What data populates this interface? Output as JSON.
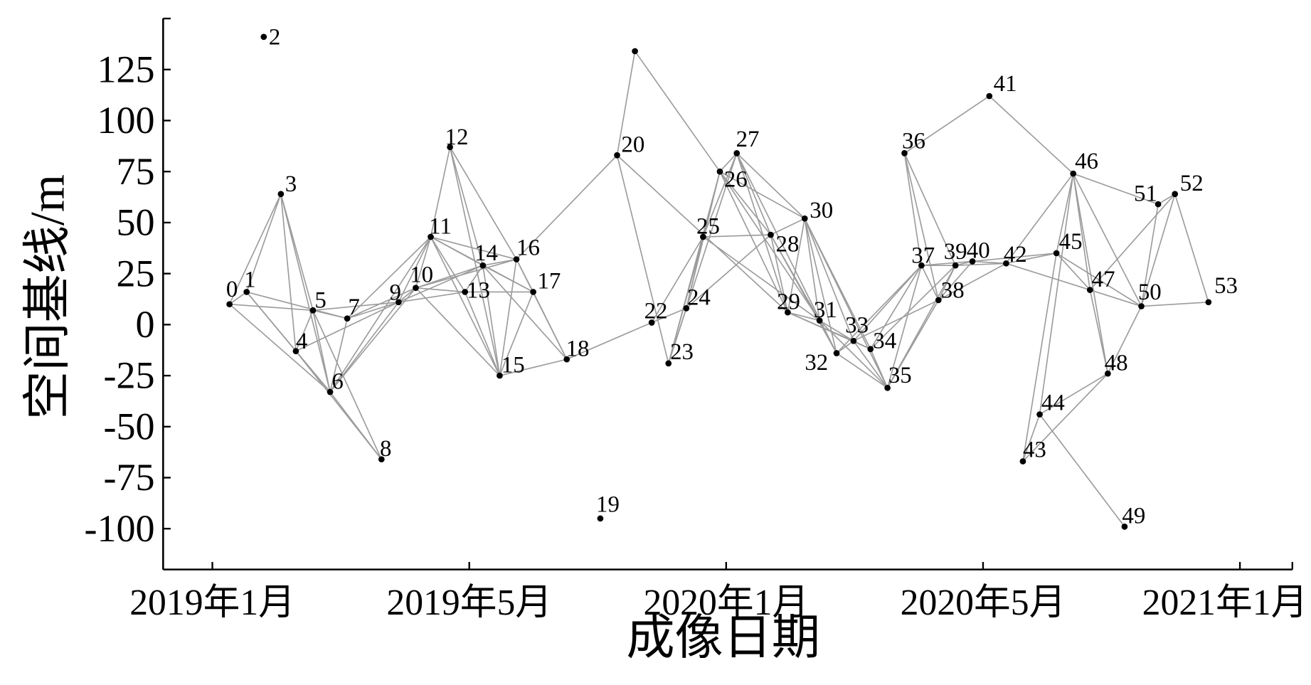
{
  "chart_data": {
    "type": "scatter",
    "xlabel": "成像日期",
    "ylabel": "空间基线/m",
    "xticks": [
      "2019年1月",
      "2019年5月",
      "2020年1月",
      "2020年5月",
      "2021年1月"
    ],
    "yticks": [
      125,
      100,
      75,
      50,
      25,
      0,
      -25,
      -50,
      -75,
      -100
    ],
    "xlim": [
      "2018-12-09",
      "2021-02-20"
    ],
    "ylim": [
      -120,
      150
    ],
    "grid": false,
    "colors": {
      "point": "#000000",
      "edge": "#9c9c9c",
      "axis": "#000000"
    },
    "points": [
      {
        "label": "0",
        "date": "2019-01-09",
        "baseline": 10
      },
      {
        "label": "1",
        "date": "2019-01-17",
        "baseline": 16
      },
      {
        "label": "2",
        "date": "2019-01-25",
        "baseline": 141
      },
      {
        "label": "3",
        "date": "2019-02-02",
        "baseline": 64
      },
      {
        "label": "4",
        "date": "2019-02-09",
        "baseline": -13
      },
      {
        "label": "5",
        "date": "2019-02-17",
        "baseline": 7
      },
      {
        "label": "6",
        "date": "2019-02-25",
        "baseline": -33
      },
      {
        "label": "7",
        "date": "2019-03-05",
        "baseline": 3
      },
      {
        "label": "8",
        "date": "2019-03-21",
        "baseline": -66
      },
      {
        "label": "9",
        "date": "2019-03-29",
        "baseline": 11
      },
      {
        "label": "10",
        "date": "2019-04-06",
        "baseline": 18
      },
      {
        "label": "11",
        "date": "2019-04-13",
        "baseline": 43
      },
      {
        "label": "12",
        "date": "2019-04-22",
        "baseline": 87
      },
      {
        "label": "13",
        "date": "2019-04-29",
        "baseline": 16
      },
      {
        "label": "14",
        "date": "2019-05-14",
        "baseline": 29
      },
      {
        "label": "15",
        "date": "2019-05-30",
        "baseline": -25
      },
      {
        "label": "16",
        "date": "2019-06-15",
        "baseline": 32
      },
      {
        "label": "17",
        "date": "2019-07-01",
        "baseline": 16
      },
      {
        "label": "18",
        "date": "2019-08-02",
        "baseline": -17
      },
      {
        "label": "19",
        "date": "2019-09-03",
        "baseline": -95
      },
      {
        "label": "20",
        "date": "2019-09-19",
        "baseline": 83
      },
      {
        "label": "",
        "date": "2019-10-06",
        "baseline": 134
      },
      {
        "label": "22",
        "date": "2019-10-22",
        "baseline": 1
      },
      {
        "label": "23",
        "date": "2019-11-07",
        "baseline": -19
      },
      {
        "label": "24",
        "date": "2019-11-24",
        "baseline": 8
      },
      {
        "label": "25",
        "date": "2019-12-10",
        "baseline": 43
      },
      {
        "label": "26",
        "date": "2019-12-26",
        "baseline": 75
      },
      {
        "label": "27",
        "date": "2020-01-06",
        "baseline": 84
      },
      {
        "label": "28",
        "date": "2020-01-22",
        "baseline": 44
      },
      {
        "label": "29",
        "date": "2020-01-30",
        "baseline": 6
      },
      {
        "label": "30",
        "date": "2020-02-07",
        "baseline": 52
      },
      {
        "label": "31",
        "date": "2020-02-14",
        "baseline": 2
      },
      {
        "label": "32",
        "date": "2020-02-22",
        "baseline": -14
      },
      {
        "label": "33",
        "date": "2020-03-01",
        "baseline": -8
      },
      {
        "label": "34",
        "date": "2020-03-09",
        "baseline": -12
      },
      {
        "label": "35",
        "date": "2020-03-17",
        "baseline": -31
      },
      {
        "label": "36",
        "date": "2020-03-25",
        "baseline": 84
      },
      {
        "label": "37",
        "date": "2020-04-02",
        "baseline": 29
      },
      {
        "label": "38",
        "date": "2020-04-10",
        "baseline": 12
      },
      {
        "label": "39",
        "date": "2020-04-18",
        "baseline": 29
      },
      {
        "label": "40",
        "date": "2020-04-26",
        "baseline": 31
      },
      {
        "label": "41",
        "date": "2020-05-07",
        "baseline": 112
      },
      {
        "label": "42",
        "date": "2020-05-23",
        "baseline": 30
      },
      {
        "label": "43",
        "date": "2020-06-08",
        "baseline": -67
      },
      {
        "label": "44",
        "date": "2020-06-24",
        "baseline": -44
      },
      {
        "label": "45",
        "date": "2020-07-10",
        "baseline": 35
      },
      {
        "label": "46",
        "date": "2020-07-26",
        "baseline": 74
      },
      {
        "label": "47",
        "date": "2020-08-11",
        "baseline": 17
      },
      {
        "label": "48",
        "date": "2020-08-28",
        "baseline": -24
      },
      {
        "label": "49",
        "date": "2020-09-13",
        "baseline": -99
      },
      {
        "label": "50",
        "date": "2020-09-29",
        "baseline": 9
      },
      {
        "label": "51",
        "date": "2020-10-15",
        "baseline": 59
      },
      {
        "label": "52",
        "date": "2020-10-31",
        "baseline": 64
      },
      {
        "label": "53",
        "date": "2020-12-02",
        "baseline": 11
      }
    ],
    "edges": [
      [
        0,
        1
      ],
      [
        0,
        3
      ],
      [
        0,
        5
      ],
      [
        0,
        6
      ],
      [
        1,
        3
      ],
      [
        1,
        4
      ],
      [
        1,
        6
      ],
      [
        1,
        7
      ],
      [
        3,
        4
      ],
      [
        3,
        5
      ],
      [
        3,
        6
      ],
      [
        4,
        5
      ],
      [
        4,
        6
      ],
      [
        4,
        8
      ],
      [
        4,
        9
      ],
      [
        5,
        6
      ],
      [
        5,
        7
      ],
      [
        5,
        8
      ],
      [
        5,
        9
      ],
      [
        6,
        7
      ],
      [
        6,
        8
      ],
      [
        6,
        9
      ],
      [
        6,
        10
      ],
      [
        6,
        11
      ],
      [
        7,
        9
      ],
      [
        7,
        10
      ],
      [
        7,
        11
      ],
      [
        9,
        10
      ],
      [
        9,
        11
      ],
      [
        9,
        13
      ],
      [
        9,
        14
      ],
      [
        10,
        11
      ],
      [
        10,
        13
      ],
      [
        10,
        14
      ],
      [
        10,
        15
      ],
      [
        10,
        16
      ],
      [
        11,
        12
      ],
      [
        11,
        13
      ],
      [
        11,
        14
      ],
      [
        11,
        15
      ],
      [
        11,
        16
      ],
      [
        11,
        17
      ],
      [
        12,
        14
      ],
      [
        12,
        15
      ],
      [
        12,
        16
      ],
      [
        13,
        14
      ],
      [
        13,
        15
      ],
      [
        13,
        17
      ],
      [
        14,
        15
      ],
      [
        14,
        16
      ],
      [
        14,
        17
      ],
      [
        14,
        18
      ],
      [
        15,
        16
      ],
      [
        15,
        17
      ],
      [
        15,
        18
      ],
      [
        16,
        17
      ],
      [
        16,
        18
      ],
      [
        16,
        20
      ],
      [
        17,
        18
      ],
      [
        18,
        22
      ],
      [
        20,
        21
      ],
      [
        20,
        23
      ],
      [
        20,
        29
      ],
      [
        21,
        26
      ],
      [
        22,
        24
      ],
      [
        22,
        25
      ],
      [
        23,
        24
      ],
      [
        23,
        25
      ],
      [
        23,
        26
      ],
      [
        23,
        27
      ],
      [
        24,
        25
      ],
      [
        24,
        26
      ],
      [
        24,
        28
      ],
      [
        25,
        26
      ],
      [
        25,
        27
      ],
      [
        25,
        28
      ],
      [
        25,
        31
      ],
      [
        26,
        27
      ],
      [
        26,
        28
      ],
      [
        26,
        29
      ],
      [
        26,
        30
      ],
      [
        26,
        31
      ],
      [
        27,
        28
      ],
      [
        27,
        29
      ],
      [
        27,
        30
      ],
      [
        27,
        32
      ],
      [
        28,
        29
      ],
      [
        28,
        30
      ],
      [
        28,
        31
      ],
      [
        28,
        32
      ],
      [
        29,
        30
      ],
      [
        29,
        31
      ],
      [
        29,
        33
      ],
      [
        29,
        34
      ],
      [
        30,
        31
      ],
      [
        30,
        32
      ],
      [
        30,
        33
      ],
      [
        30,
        34
      ],
      [
        30,
        35
      ],
      [
        31,
        32
      ],
      [
        31,
        33
      ],
      [
        31,
        35
      ],
      [
        32,
        33
      ],
      [
        32,
        35
      ],
      [
        32,
        37
      ],
      [
        33,
        34
      ],
      [
        33,
        35
      ],
      [
        33,
        37
      ],
      [
        33,
        38
      ],
      [
        34,
        35
      ],
      [
        34,
        37
      ],
      [
        34,
        39
      ],
      [
        35,
        37
      ],
      [
        35,
        38
      ],
      [
        35,
        39
      ],
      [
        36,
        37
      ],
      [
        36,
        38
      ],
      [
        36,
        39
      ],
      [
        36,
        41
      ],
      [
        37,
        38
      ],
      [
        37,
        39
      ],
      [
        37,
        40
      ],
      [
        38,
        39
      ],
      [
        38,
        40
      ],
      [
        38,
        42
      ],
      [
        39,
        40
      ],
      [
        39,
        42
      ],
      [
        40,
        42
      ],
      [
        40,
        45
      ],
      [
        41,
        46
      ],
      [
        42,
        45
      ],
      [
        42,
        46
      ],
      [
        42,
        47
      ],
      [
        43,
        44
      ],
      [
        43,
        45
      ],
      [
        43,
        48
      ],
      [
        44,
        46
      ],
      [
        44,
        48
      ],
      [
        44,
        49
      ],
      [
        45,
        46
      ],
      [
        45,
        47
      ],
      [
        45,
        50
      ],
      [
        46,
        47
      ],
      [
        46,
        48
      ],
      [
        46,
        50
      ],
      [
        46,
        51
      ],
      [
        47,
        48
      ],
      [
        47,
        50
      ],
      [
        47,
        52
      ],
      [
        48,
        50
      ],
      [
        50,
        51
      ],
      [
        50,
        52
      ],
      [
        50,
        53
      ],
      [
        51,
        52
      ],
      [
        52,
        53
      ]
    ]
  }
}
